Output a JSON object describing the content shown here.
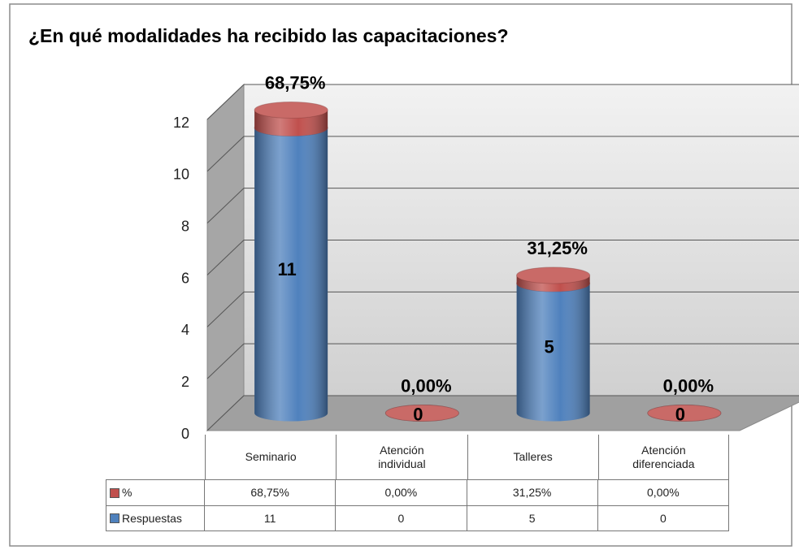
{
  "chart_data": {
    "type": "bar",
    "stacked": true,
    "title": "¿En qué modalidades ha recibido las capacitaciones?",
    "categories": [
      "Seminario",
      "Atención individual",
      "Talleres",
      "Atención diferenciada"
    ],
    "series": [
      {
        "name": "Respuestas",
        "color": "#4f81bd",
        "values": [
          11,
          0,
          5,
          0
        ]
      },
      {
        "name": "%",
        "color": "#c0504d",
        "values": [
          0.6875,
          0,
          0.3125,
          0
        ],
        "value_labels": [
          "68,75%",
          "0,00%",
          "31,25%",
          "0,00%"
        ]
      }
    ],
    "ylim": [
      0,
      12
    ],
    "yticks": [
      0,
      2,
      4,
      6,
      8,
      10,
      12
    ],
    "grid": true,
    "data_table": true
  }
}
